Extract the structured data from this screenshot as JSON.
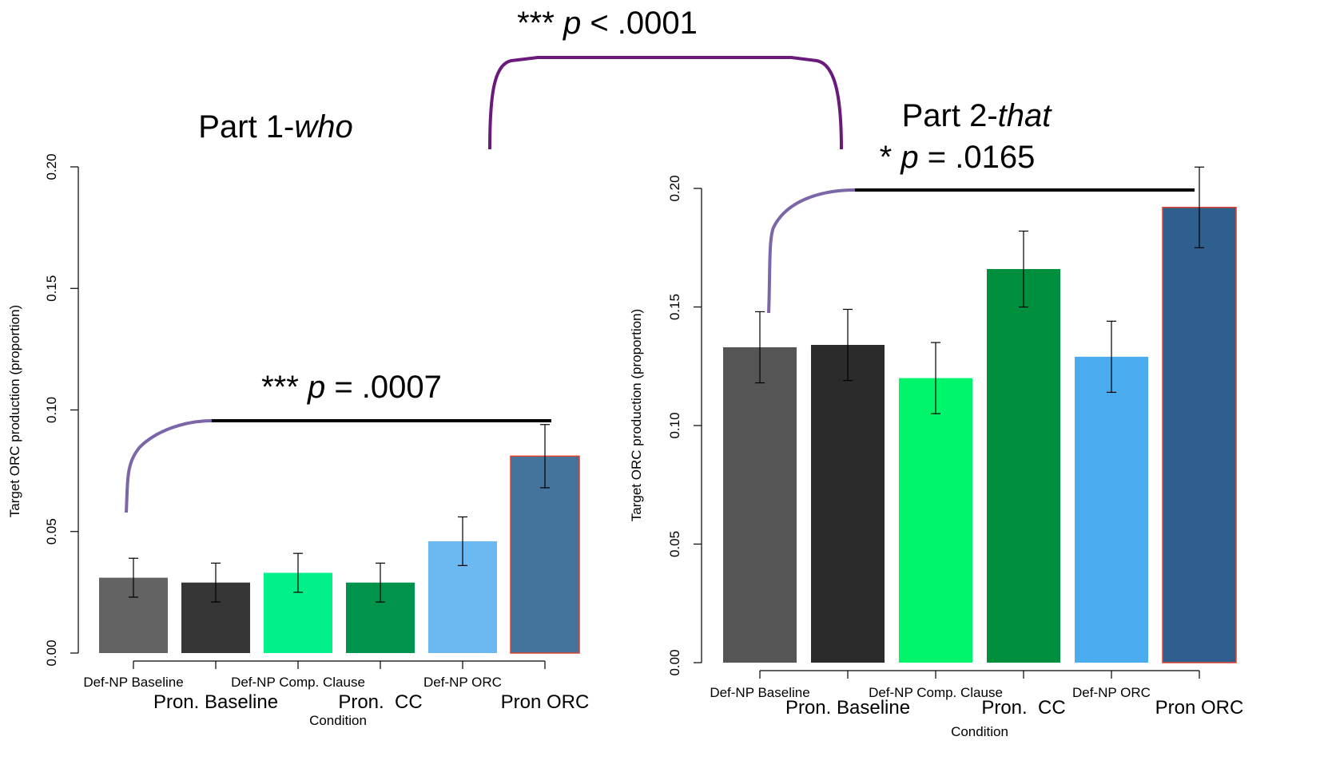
{
  "comparison": {
    "stars": "***",
    "stat": "p",
    "result": "< .0001"
  },
  "chart_data": [
    {
      "type": "bar",
      "title": "Part 1-",
      "title_italic": "who",
      "ylabel": "Target ORC production (proportion)",
      "xlabel": "Condition",
      "categories": [
        "Def-NP Baseline",
        "Pron. Baseline",
        "Def-NP Comp. Clause",
        "Pron.  CC",
        "Def-NP ORC",
        "Pron ORC"
      ],
      "values": [
        0.031,
        0.029,
        0.033,
        0.029,
        0.046,
        0.081
      ],
      "errors": [
        0.008,
        0.008,
        0.008,
        0.008,
        0.01,
        0.013
      ],
      "colors": [
        "#636363",
        "#363636",
        "#00f08a",
        "#00934c",
        "#6cb8f0",
        "#44739b"
      ],
      "outlined": [
        false,
        false,
        false,
        false,
        false,
        true
      ],
      "outline_color": "#e0402a",
      "ylim": [
        0,
        0.2
      ],
      "yticks": [
        {
          "value": 0,
          "label": "0.00"
        },
        {
          "value": 0.05,
          "label": "0.05"
        },
        {
          "value": 0.1,
          "label": "0.10"
        },
        {
          "value": 0.15,
          "label": "0.15"
        },
        {
          "value": 0.2,
          "label": "0.20"
        }
      ],
      "annotation": {
        "stars": "***",
        "stat": "p",
        "result": "= .0007"
      }
    },
    {
      "type": "bar",
      "title": "Part 2-",
      "title_italic": "that",
      "ylabel": "Target ORC production (proportion)",
      "xlabel": "Condition",
      "categories": [
        "Def-NP Baseline",
        "Pron. Baseline",
        "Def-NP Comp. Clause",
        "Pron.  CC",
        "Def-NP ORC",
        "Pron ORC"
      ],
      "values": [
        0.133,
        0.134,
        0.12,
        0.166,
        0.129,
        0.192
      ],
      "errors": [
        0.015,
        0.015,
        0.015,
        0.016,
        0.015,
        0.017
      ],
      "colors": [
        "#555555",
        "#2b2b2b",
        "#00f56a",
        "#008f3c",
        "#4aabef",
        "#2f5f8c"
      ],
      "outlined": [
        false,
        false,
        false,
        false,
        false,
        true
      ],
      "outline_color": "#e0402a",
      "ylim": [
        0,
        0.2
      ],
      "yticks": [
        {
          "value": 0,
          "label": "0.00"
        },
        {
          "value": 0.05,
          "label": "0.05"
        },
        {
          "value": 0.1,
          "label": "0.10"
        },
        {
          "value": 0.15,
          "label": "0.15"
        },
        {
          "value": 0.2,
          "label": "0.20"
        }
      ],
      "annotation": {
        "stars": "*",
        "stat": "p",
        "result": "= .0165"
      }
    }
  ]
}
